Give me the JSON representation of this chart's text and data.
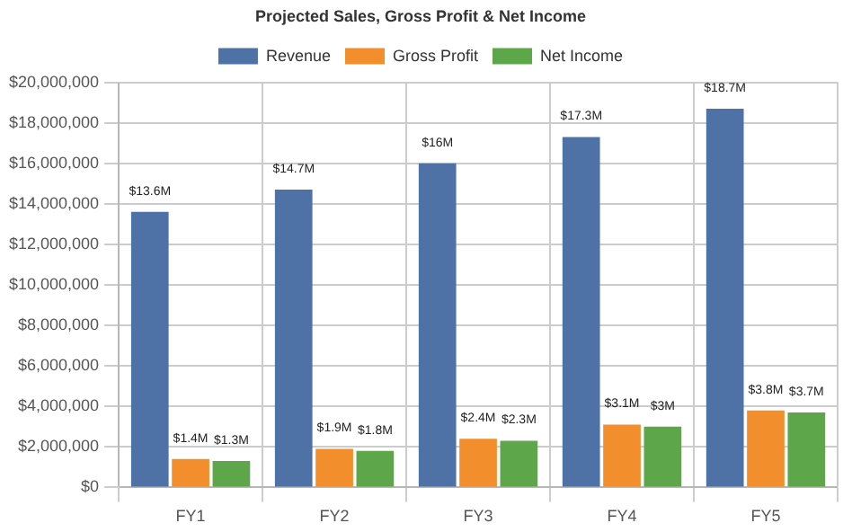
{
  "chart_data": {
    "type": "bar",
    "title": "Projected Sales, Gross Profit & Net Income",
    "categories": [
      "FY1",
      "FY2",
      "FY3",
      "FY4",
      "FY5"
    ],
    "series": [
      {
        "name": "Revenue",
        "color": "#4e72a6",
        "values": [
          13600000,
          14700000,
          16000000,
          17300000,
          18700000
        ],
        "value_labels": [
          "$13.6M",
          "$14.7M",
          "$16M",
          "$17.3M",
          "$18.7M"
        ]
      },
      {
        "name": "Gross Profit",
        "color": "#f28e2b",
        "values": [
          1400000,
          1900000,
          2400000,
          3100000,
          3800000
        ],
        "value_labels": [
          "$1.4M",
          "$1.9M",
          "$2.4M",
          "$3.1M",
          "$3.8M"
        ]
      },
      {
        "name": "Net Income",
        "color": "#5ea64a",
        "values": [
          1300000,
          1800000,
          2300000,
          3000000,
          3700000
        ],
        "value_labels": [
          "$1.3M",
          "$1.8M",
          "$2.3M",
          "$3M",
          "$3.7M"
        ]
      }
    ],
    "ylim": [
      0,
      20000000
    ],
    "yticks": [
      {
        "value": 0,
        "label": "$0"
      },
      {
        "value": 2000000,
        "label": "$2,000,000"
      },
      {
        "value": 4000000,
        "label": "$4,000,000"
      },
      {
        "value": 6000000,
        "label": "$6,000,000"
      },
      {
        "value": 8000000,
        "label": "$8,000,000"
      },
      {
        "value": 10000000,
        "label": "$10,000,000"
      },
      {
        "value": 12000000,
        "label": "$12,000,000"
      },
      {
        "value": 14000000,
        "label": "$14,000,000"
      },
      {
        "value": 16000000,
        "label": "$16,000,000"
      },
      {
        "value": 18000000,
        "label": "$18,000,000"
      },
      {
        "value": 20000000,
        "label": "$20,000,000"
      }
    ],
    "grid": true,
    "legend": "top"
  }
}
